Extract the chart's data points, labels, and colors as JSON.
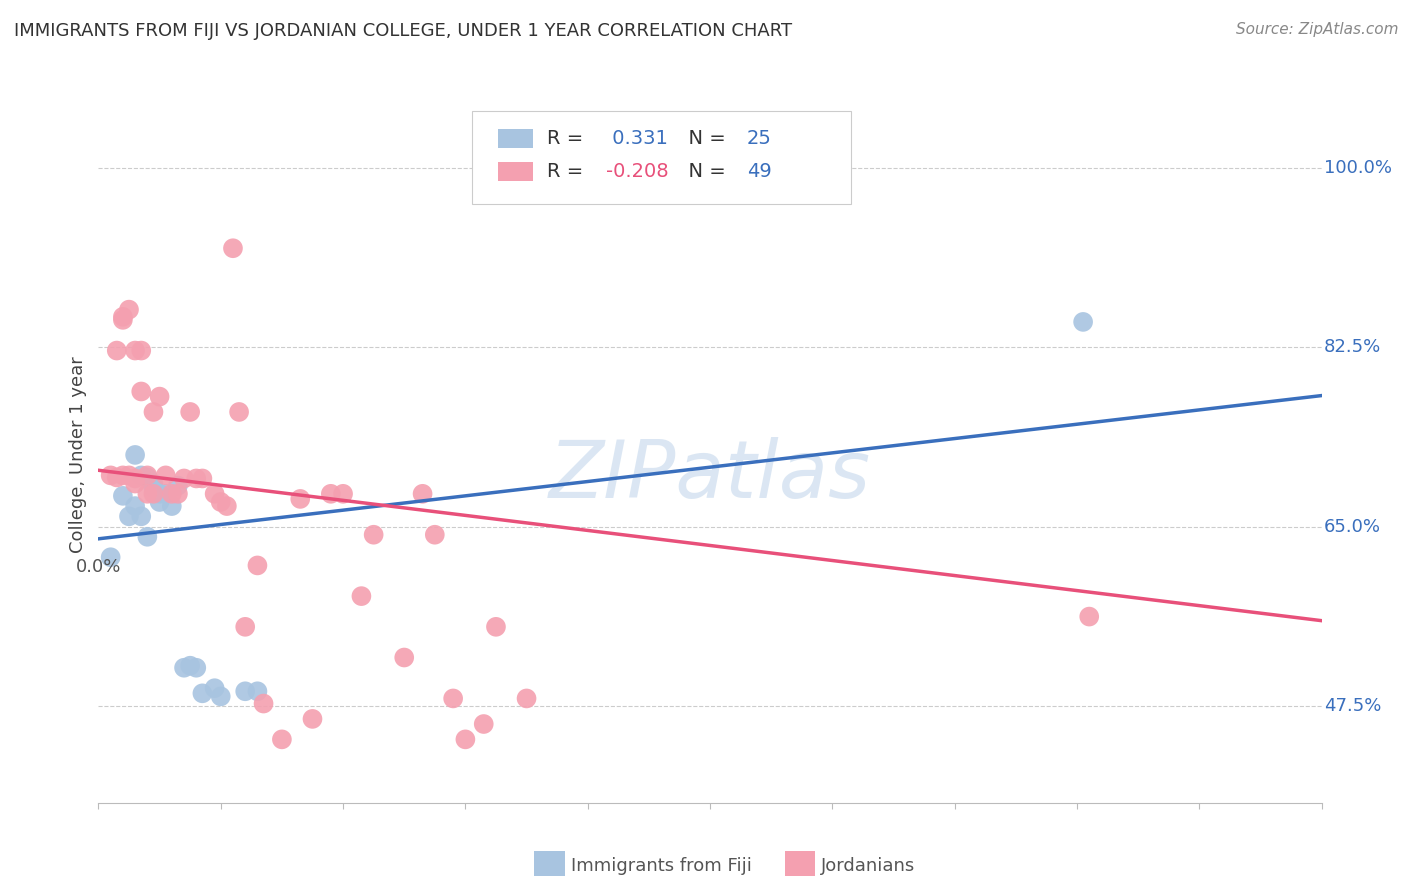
{
  "title": "IMMIGRANTS FROM FIJI VS JORDANIAN COLLEGE, UNDER 1 YEAR CORRELATION CHART",
  "source": "Source: ZipAtlas.com",
  "ylabel": "College, Under 1 year",
  "ytick_vals": [
    0.475,
    0.65,
    0.825,
    1.0
  ],
  "ytick_labels": [
    "47.5%",
    "65.0%",
    "82.5%",
    "100.0%"
  ],
  "xtick_vals": [
    0.0,
    0.02,
    0.04,
    0.06,
    0.08,
    0.1,
    0.12,
    0.14,
    0.16,
    0.18,
    0.2
  ],
  "xlim": [
    0.0,
    0.2
  ],
  "ylim": [
    0.38,
    1.06
  ],
  "fiji_R": 0.331,
  "fiji_N": 25,
  "jordan_R": -0.208,
  "jordan_N": 49,
  "fiji_color": "#a8c4e0",
  "jordan_color": "#f4a0b0",
  "fiji_line_color": "#3a6fbd",
  "jordan_line_color": "#e8507a",
  "fiji_points_x": [
    0.002,
    0.004,
    0.005,
    0.006,
    0.006,
    0.007,
    0.007,
    0.008,
    0.008,
    0.009,
    0.009,
    0.01,
    0.01,
    0.011,
    0.012,
    0.013,
    0.014,
    0.015,
    0.016,
    0.017,
    0.019,
    0.02,
    0.024,
    0.026,
    0.161
  ],
  "fiji_points_y": [
    0.62,
    0.68,
    0.66,
    0.67,
    0.72,
    0.7,
    0.66,
    0.64,
    0.698,
    0.692,
    0.688,
    0.674,
    0.682,
    0.682,
    0.67,
    0.69,
    0.512,
    0.514,
    0.512,
    0.487,
    0.492,
    0.484,
    0.489,
    0.489,
    0.85
  ],
  "jordan_points_x": [
    0.002,
    0.003,
    0.003,
    0.004,
    0.004,
    0.004,
    0.005,
    0.005,
    0.006,
    0.006,
    0.006,
    0.007,
    0.007,
    0.008,
    0.008,
    0.009,
    0.009,
    0.01,
    0.011,
    0.012,
    0.013,
    0.014,
    0.015,
    0.016,
    0.017,
    0.019,
    0.02,
    0.021,
    0.022,
    0.023,
    0.024,
    0.026,
    0.027,
    0.03,
    0.033,
    0.035,
    0.038,
    0.04,
    0.043,
    0.045,
    0.05,
    0.053,
    0.055,
    0.058,
    0.06,
    0.063,
    0.065,
    0.07,
    0.162
  ],
  "jordan_points_y": [
    0.7,
    0.698,
    0.822,
    0.7,
    0.852,
    0.855,
    0.862,
    0.7,
    0.692,
    0.697,
    0.822,
    0.822,
    0.782,
    0.7,
    0.682,
    0.682,
    0.762,
    0.777,
    0.7,
    0.682,
    0.682,
    0.697,
    0.762,
    0.697,
    0.697,
    0.682,
    0.674,
    0.67,
    0.922,
    0.762,
    0.552,
    0.612,
    0.477,
    0.442,
    0.677,
    0.462,
    0.682,
    0.682,
    0.582,
    0.642,
    0.522,
    0.682,
    0.642,
    0.482,
    0.442,
    0.457,
    0.552,
    0.482,
    0.562
  ],
  "watermark": "ZIPatlas",
  "fiji_line_x": [
    0.0,
    0.2
  ],
  "fiji_line_y": [
    0.638,
    0.778
  ],
  "jordan_line_x": [
    0.0,
    0.2
  ],
  "jordan_line_y": [
    0.705,
    0.558
  ]
}
